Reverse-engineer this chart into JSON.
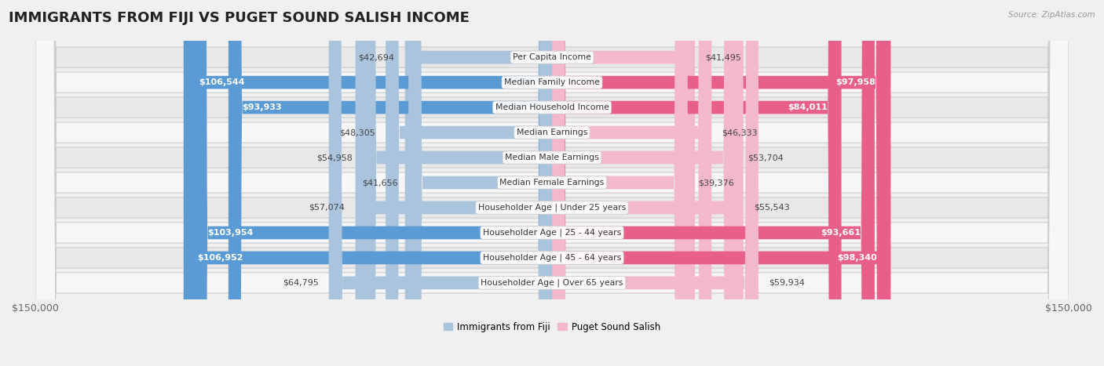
{
  "title": "IMMIGRANTS FROM FIJI VS PUGET SOUND SALISH INCOME",
  "source": "Source: ZipAtlas.com",
  "categories": [
    "Per Capita Income",
    "Median Family Income",
    "Median Household Income",
    "Median Earnings",
    "Median Male Earnings",
    "Median Female Earnings",
    "Householder Age | Under 25 years",
    "Householder Age | 25 - 44 years",
    "Householder Age | 45 - 64 years",
    "Householder Age | Over 65 years"
  ],
  "fiji_values": [
    42694,
    106544,
    93933,
    48305,
    54958,
    41656,
    57074,
    103954,
    106952,
    64795
  ],
  "salish_values": [
    41495,
    97958,
    84011,
    46333,
    53704,
    39376,
    55543,
    93661,
    98340,
    59934
  ],
  "fiji_color_light": "#aac4de",
  "fiji_color_dark": "#5b9bd5",
  "salish_color_light": "#f4b8cc",
  "salish_color_dark": "#e8608a",
  "fiji_label": "Immigrants from Fiji",
  "salish_label": "Puget Sound Salish",
  "max_val": 150000,
  "background_color": "#f0f0f0",
  "row_bg_light": "#f7f7f7",
  "row_bg_dark": "#e8e8e8",
  "title_fontsize": 13,
  "label_fontsize": 8.0,
  "tick_fontsize": 9,
  "threshold": 65000
}
